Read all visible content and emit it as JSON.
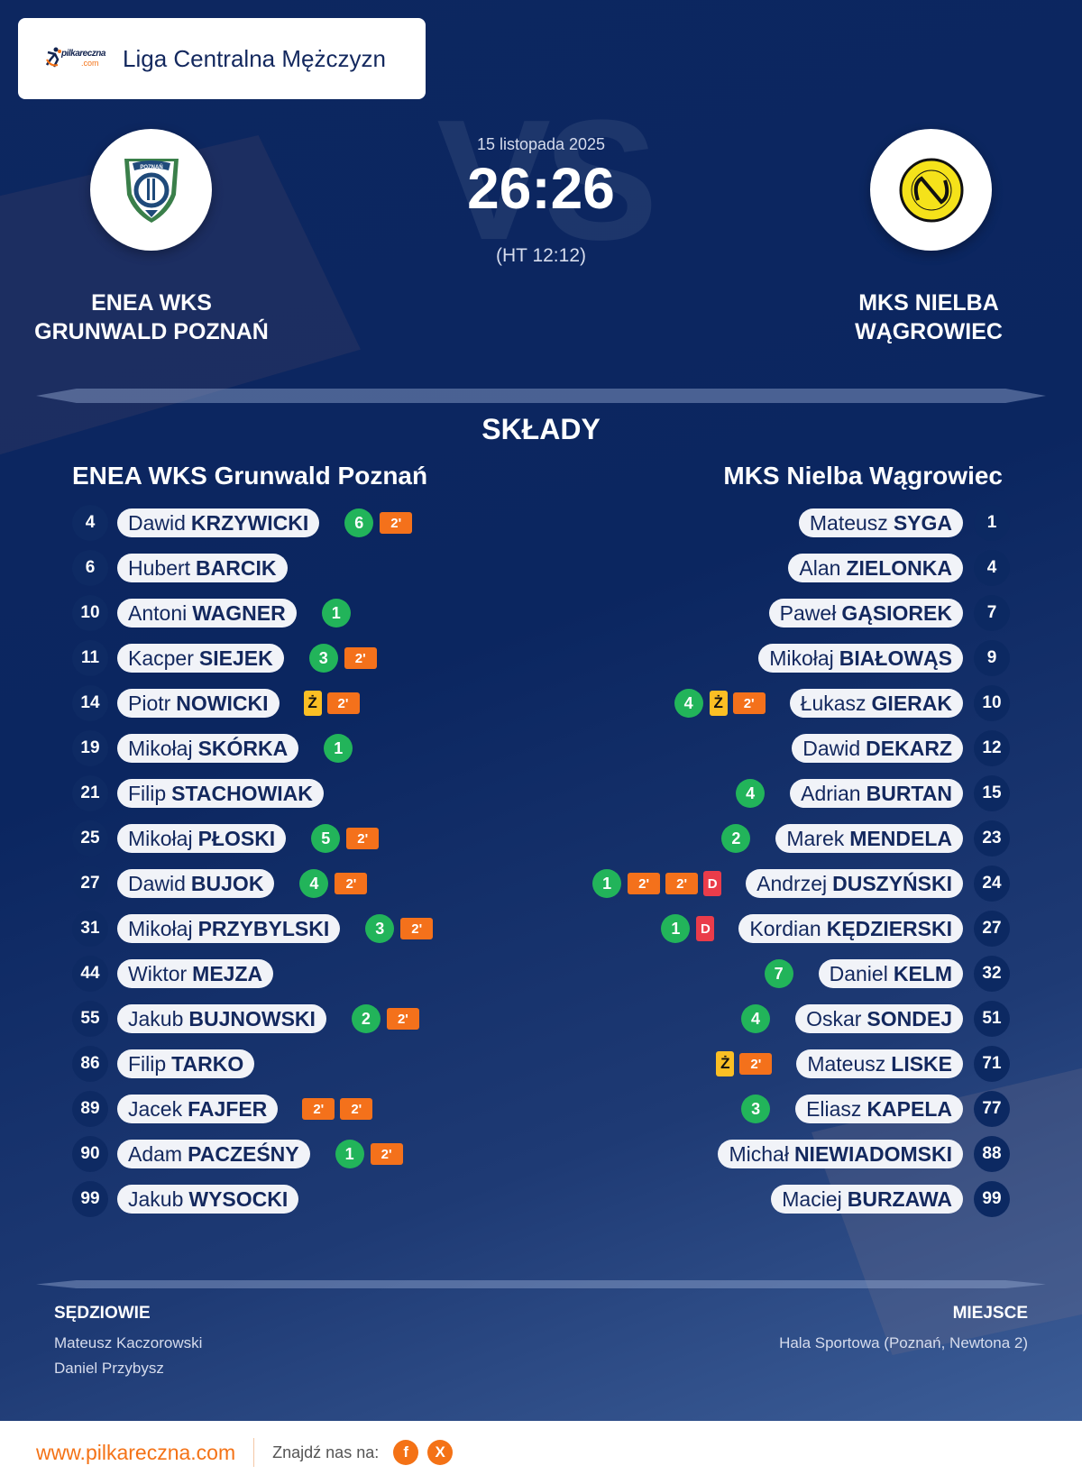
{
  "header": {
    "brand_top": "pilkareczna",
    "brand_bottom": ".com",
    "league": "Liga Centralna Mężczyzn"
  },
  "match": {
    "date": "15 listopada 2025",
    "score": "26:26",
    "halftime": "(HT 12:12)",
    "vs_watermark": "VS"
  },
  "home_team": {
    "name_line1": "ENEA WKS",
    "name_line2": "GRUNWALD POZNAŃ",
    "roster_title": "ENEA WKS Grunwald Poznań",
    "logo_text": "POZNAŃ"
  },
  "away_team": {
    "name_line1": "MKS NIELBA",
    "name_line2": "WĄGROWIEC",
    "roster_title": "MKS Nielba Wągrowiec",
    "logo_text": "MKS NIELBA WĄGROWIEC"
  },
  "lineups_title": "SKŁADY",
  "home_players": [
    {
      "number": "4",
      "first": "Dawid",
      "last": "KRZYWICKI",
      "stats": [
        {
          "type": "goal",
          "v": "6"
        },
        {
          "type": "susp",
          "v": "2'"
        }
      ]
    },
    {
      "number": "6",
      "first": "Hubert",
      "last": "BARCIK",
      "stats": []
    },
    {
      "number": "10",
      "first": "Antoni",
      "last": "WAGNER",
      "stats": [
        {
          "type": "goal",
          "v": "1"
        }
      ]
    },
    {
      "number": "11",
      "first": "Kacper",
      "last": "SIEJEK",
      "stats": [
        {
          "type": "goal",
          "v": "3"
        },
        {
          "type": "susp",
          "v": "2'"
        }
      ]
    },
    {
      "number": "14",
      "first": "Piotr",
      "last": "NOWICKI",
      "stats": [
        {
          "type": "yellow",
          "v": "Ż"
        },
        {
          "type": "susp",
          "v": "2'"
        }
      ]
    },
    {
      "number": "19",
      "first": "Mikołaj",
      "last": "SKÓRKA",
      "stats": [
        {
          "type": "goal",
          "v": "1"
        }
      ]
    },
    {
      "number": "21",
      "first": "Filip",
      "last": "STACHOWIAK",
      "stats": []
    },
    {
      "number": "25",
      "first": "Mikołaj",
      "last": "PŁOSKI",
      "stats": [
        {
          "type": "goal",
          "v": "5"
        },
        {
          "type": "susp",
          "v": "2'"
        }
      ]
    },
    {
      "number": "27",
      "first": "Dawid",
      "last": "BUJOK",
      "stats": [
        {
          "type": "goal",
          "v": "4"
        },
        {
          "type": "susp",
          "v": "2'"
        }
      ]
    },
    {
      "number": "31",
      "first": "Mikołaj",
      "last": "PRZYBYLSKI",
      "stats": [
        {
          "type": "goal",
          "v": "3"
        },
        {
          "type": "susp",
          "v": "2'"
        }
      ]
    },
    {
      "number": "44",
      "first": "Wiktor",
      "last": "MEJZA",
      "stats": []
    },
    {
      "number": "55",
      "first": "Jakub",
      "last": "BUJNOWSKI",
      "stats": [
        {
          "type": "goal",
          "v": "2"
        },
        {
          "type": "susp",
          "v": "2'"
        }
      ]
    },
    {
      "number": "86",
      "first": "Filip",
      "last": "TARKO",
      "stats": []
    },
    {
      "number": "89",
      "first": "Jacek",
      "last": "FAJFER",
      "stats": [
        {
          "type": "susp",
          "v": "2'"
        },
        {
          "type": "susp",
          "v": "2'"
        }
      ]
    },
    {
      "number": "90",
      "first": "Adam",
      "last": "PACZEŚNY",
      "stats": [
        {
          "type": "goal",
          "v": "1"
        },
        {
          "type": "susp",
          "v": "2'"
        }
      ]
    },
    {
      "number": "99",
      "first": "Jakub",
      "last": "WYSOCKI",
      "stats": []
    }
  ],
  "away_players": [
    {
      "number": "1",
      "first": "Mateusz",
      "last": "SYGA",
      "stats": []
    },
    {
      "number": "4",
      "first": "Alan",
      "last": "ZIELONKA",
      "stats": []
    },
    {
      "number": "7",
      "first": "Paweł",
      "last": "GĄSIOREK",
      "stats": []
    },
    {
      "number": "9",
      "first": "Mikołaj",
      "last": "BIAŁOWĄS",
      "stats": []
    },
    {
      "number": "10",
      "first": "Łukasz",
      "last": "GIERAK",
      "stats": [
        {
          "type": "goal",
          "v": "4"
        },
        {
          "type": "yellow",
          "v": "Ż"
        },
        {
          "type": "susp",
          "v": "2'"
        }
      ]
    },
    {
      "number": "12",
      "first": "Dawid",
      "last": "DEKARZ",
      "stats": []
    },
    {
      "number": "15",
      "first": "Adrian",
      "last": "BURTAN",
      "stats": [
        {
          "type": "goal",
          "v": "4"
        }
      ]
    },
    {
      "number": "23",
      "first": "Marek",
      "last": "MENDELA",
      "stats": [
        {
          "type": "goal",
          "v": "2"
        }
      ]
    },
    {
      "number": "24",
      "first": "Andrzej",
      "last": "DUSZYŃSKI",
      "stats": [
        {
          "type": "goal",
          "v": "1"
        },
        {
          "type": "susp",
          "v": "2'"
        },
        {
          "type": "susp",
          "v": "2'"
        },
        {
          "type": "red",
          "v": "D"
        }
      ]
    },
    {
      "number": "27",
      "first": "Kordian",
      "last": "KĘDZIERSKI",
      "stats": [
        {
          "type": "goal",
          "v": "1"
        },
        {
          "type": "red",
          "v": "D"
        }
      ]
    },
    {
      "number": "32",
      "first": "Daniel",
      "last": "KELM",
      "stats": [
        {
          "type": "goal",
          "v": "7"
        }
      ]
    },
    {
      "number": "51",
      "first": "Oskar",
      "last": "SONDEJ",
      "stats": [
        {
          "type": "goal",
          "v": "4"
        }
      ]
    },
    {
      "number": "71",
      "first": "Mateusz",
      "last": "LISKE",
      "stats": [
        {
          "type": "yellow",
          "v": "Ż"
        },
        {
          "type": "susp",
          "v": "2'"
        }
      ]
    },
    {
      "number": "77",
      "first": "Eliasz",
      "last": "KAPELA",
      "stats": [
        {
          "type": "goal",
          "v": "3"
        }
      ]
    },
    {
      "number": "88",
      "first": "Michał",
      "last": "NIEWIADOMSKI",
      "stats": []
    },
    {
      "number": "99",
      "first": "Maciej",
      "last": "BURZAWA",
      "stats": []
    }
  ],
  "referees": {
    "title": "SĘDZIOWIE",
    "names": [
      "Mateusz Kaczorowski",
      "Daniel Przybysz"
    ]
  },
  "venue": {
    "title": "MIEJSCE",
    "value": "Hala Sportowa (Poznań, Newtona 2)"
  },
  "footer": {
    "site": "www.pilkareczna.com",
    "find_us": "Znajdź nas na:",
    "facebook": "f",
    "x": "X"
  },
  "colors": {
    "navy": "#0b2660",
    "goal": "#22b45a",
    "suspension": "#f4711b",
    "yellow_card": "#fbbf24",
    "red_card": "#ea3c4a",
    "brand_orange": "#f47216"
  }
}
